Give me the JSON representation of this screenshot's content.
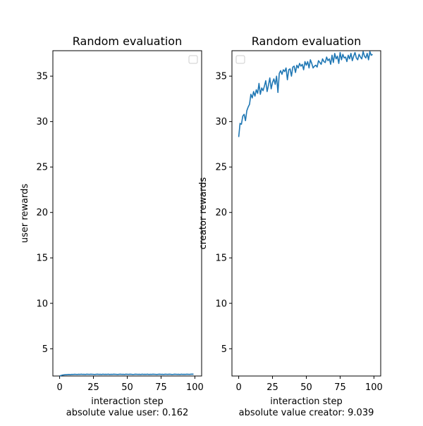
{
  "figure": {
    "panels": [
      {
        "xlabel_lines": [
          "interaction step",
          "absolute value user: 0.162"
        ]
      },
      {
        "xlabel_lines": [
          "interaction step",
          "absolute value creator: 9.039"
        ]
      }
    ]
  },
  "chart_data": [
    {
      "type": "line",
      "title": "Random evaluation",
      "xlabel": "interaction step",
      "ylabel": "user rewards",
      "xlim": [
        -5,
        105
      ],
      "ylim": [
        2.0,
        37.8
      ],
      "xticks": [
        0,
        25,
        50,
        75,
        100
      ],
      "yticks": [
        5,
        10,
        15,
        20,
        25,
        30,
        35
      ],
      "legend": "top-right",
      "legend_entries": [],
      "line_color": "#1f77b4",
      "x": [
        0,
        1,
        2,
        3,
        4,
        5,
        6,
        7,
        8,
        9,
        10,
        11,
        12,
        13,
        14,
        15,
        16,
        17,
        18,
        19,
        20,
        21,
        22,
        23,
        24,
        25,
        26,
        27,
        28,
        29,
        30,
        31,
        32,
        33,
        34,
        35,
        36,
        37,
        38,
        39,
        40,
        41,
        42,
        43,
        44,
        45,
        46,
        47,
        48,
        49,
        50,
        51,
        52,
        53,
        54,
        55,
        56,
        57,
        58,
        59,
        60,
        61,
        62,
        63,
        64,
        65,
        66,
        67,
        68,
        69,
        70,
        71,
        72,
        73,
        74,
        75,
        76,
        77,
        78,
        79,
        80,
        81,
        82,
        83,
        84,
        85,
        86,
        87,
        88,
        89,
        90,
        91,
        92,
        93,
        94,
        95,
        96,
        97,
        98,
        99
      ],
      "series": [
        {
          "values": [
            2.0,
            2.06,
            2.1,
            2.12,
            2.14,
            2.14,
            2.16,
            2.17,
            2.15,
            2.18,
            2.17,
            2.19,
            2.18,
            2.17,
            2.19,
            2.18,
            2.2,
            2.18,
            2.19,
            2.17,
            2.2,
            2.19,
            2.18,
            2.2,
            2.19,
            2.18,
            2.17,
            2.19,
            2.2,
            2.18,
            2.19,
            2.17,
            2.2,
            2.18,
            2.19,
            2.18,
            2.2,
            2.17,
            2.19,
            2.18,
            2.2,
            2.19,
            2.18,
            2.17,
            2.19,
            2.2,
            2.18,
            2.19,
            2.17,
            2.2,
            2.19,
            2.18,
            2.2,
            2.19,
            2.17,
            2.18,
            2.2,
            2.19,
            2.18,
            2.19,
            2.17,
            2.2,
            2.18,
            2.19,
            2.18,
            2.2,
            2.17,
            2.19,
            2.18,
            2.2,
            2.19,
            2.18,
            2.17,
            2.19,
            2.2,
            2.18,
            2.19,
            2.17,
            2.2,
            2.19,
            2.18,
            2.2,
            2.19,
            2.17,
            2.18,
            2.2,
            2.19,
            2.18,
            2.19,
            2.17,
            2.2,
            2.18,
            2.19,
            2.18,
            2.2,
            2.19,
            2.18,
            2.2,
            2.21,
            2.2
          ]
        }
      ]
    },
    {
      "type": "line",
      "title": "Random evaluation",
      "xlabel": "interaction step",
      "ylabel": "creator rewards",
      "xlim": [
        -5,
        105
      ],
      "ylim": [
        2.0,
        37.8
      ],
      "xticks": [
        0,
        25,
        50,
        75,
        100
      ],
      "yticks": [
        5,
        10,
        15,
        20,
        25,
        30,
        35
      ],
      "legend": "top-left",
      "legend_entries": [],
      "line_color": "#1f77b4",
      "x": [
        0,
        1,
        2,
        3,
        4,
        5,
        6,
        7,
        8,
        9,
        10,
        11,
        12,
        13,
        14,
        15,
        16,
        17,
        18,
        19,
        20,
        21,
        22,
        23,
        24,
        25,
        26,
        27,
        28,
        29,
        30,
        31,
        32,
        33,
        34,
        35,
        36,
        37,
        38,
        39,
        40,
        41,
        42,
        43,
        44,
        45,
        46,
        47,
        48,
        49,
        50,
        51,
        52,
        53,
        54,
        55,
        56,
        57,
        58,
        59,
        60,
        61,
        62,
        63,
        64,
        65,
        66,
        67,
        68,
        69,
        70,
        71,
        72,
        73,
        74,
        75,
        76,
        77,
        78,
        79,
        80,
        81,
        82,
        83,
        84,
        85,
        86,
        87,
        88,
        89,
        90,
        91,
        92,
        93,
        94,
        95,
        96,
        97,
        98,
        99
      ],
      "series": [
        {
          "values": [
            28.3,
            29.8,
            29.7,
            30.6,
            30.8,
            30.1,
            31.2,
            31.6,
            31.9,
            33.0,
            32.6,
            33.3,
            32.8,
            33.5,
            33.1,
            34.2,
            33.0,
            33.7,
            33.4,
            33.9,
            34.5,
            33.3,
            34.0,
            34.8,
            33.6,
            34.3,
            34.7,
            34.1,
            35.0,
            33.2,
            35.3,
            35.6,
            35.2,
            35.7,
            35.5,
            35.9,
            34.6,
            35.7,
            35.8,
            35.0,
            36.0,
            36.1,
            35.4,
            36.2,
            35.9,
            36.4,
            36.1,
            36.3,
            35.7,
            36.6,
            36.2,
            36.6,
            35.9,
            36.8,
            36.4,
            35.9,
            36.1,
            36.2,
            36.0,
            36.7,
            36.5,
            36.3,
            36.9,
            36.6,
            36.5,
            37.1,
            36.7,
            36.9,
            36.3,
            37.3,
            36.5,
            37.5,
            36.9,
            37.2,
            36.4,
            37.6,
            36.8,
            37.4,
            37.0,
            37.1,
            36.6,
            37.3,
            36.9,
            37.5,
            36.7,
            37.2,
            37.6,
            37.0,
            36.8,
            37.4,
            37.1,
            36.9,
            37.7,
            37.2,
            37.0,
            37.5,
            36.8,
            37.7,
            37.3,
            37.4
          ]
        }
      ]
    }
  ]
}
